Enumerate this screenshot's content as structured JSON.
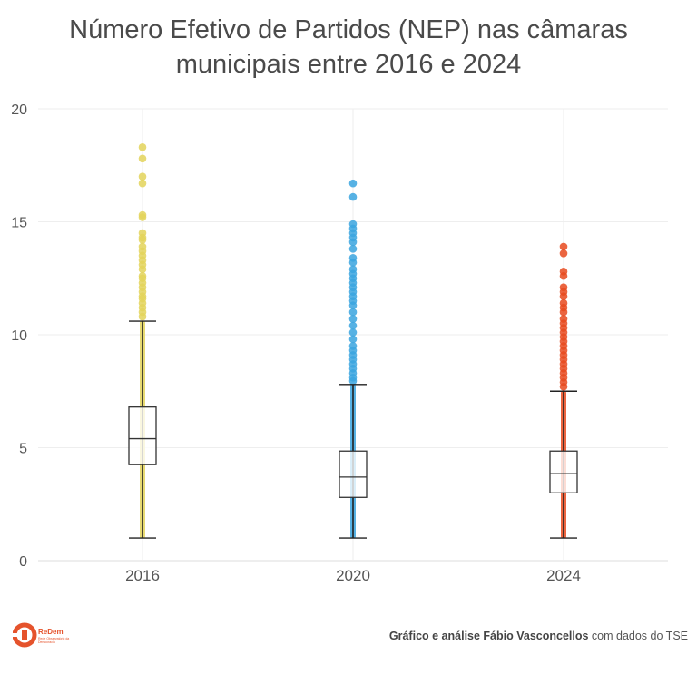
{
  "title_line1": "Número Efetivo de Partidos (NEP) nas câmaras",
  "title_line2": "municipais entre 2016 e 2024",
  "chart_data": {
    "type": "boxplot",
    "title": "Número Efetivo de Partidos (NEP) nas câmaras municipais entre 2016 e 2024",
    "xlabel": "",
    "ylabel": "",
    "ylim": [
      0,
      20
    ],
    "yticks": [
      0,
      5,
      10,
      15,
      20
    ],
    "grid": true,
    "categories": [
      "2016",
      "2020",
      "2024"
    ],
    "colors": {
      "2016": "#e3d35a",
      "2020": "#39a5df",
      "2024": "#e84a1e"
    },
    "boxes": [
      {
        "category": "2016",
        "min": 1.0,
        "q1": 4.25,
        "median": 5.4,
        "q3": 6.8,
        "max": 10.6,
        "outliers": [
          18.3,
          17.8,
          17.0,
          16.7,
          15.3,
          15.2,
          14.5,
          14.3,
          14.2,
          13.9,
          13.7,
          13.5,
          13.3,
          13.1,
          12.9,
          12.6,
          12.5,
          12.3,
          12.1,
          11.9,
          11.7,
          11.6,
          11.4,
          11.2,
          11.0,
          10.8
        ]
      },
      {
        "category": "2020",
        "min": 1.0,
        "q1": 2.8,
        "median": 3.7,
        "q3": 4.85,
        "max": 7.8,
        "outliers": [
          16.7,
          16.1,
          14.9,
          14.7,
          14.5,
          14.3,
          14.1,
          13.8,
          13.4,
          13.2,
          12.9,
          12.7,
          12.5,
          12.3,
          12.1,
          11.9,
          11.7,
          11.5,
          11.3,
          11.0,
          10.7,
          10.4,
          10.1,
          9.8,
          9.5,
          9.3,
          9.1,
          8.9,
          8.7,
          8.5,
          8.3,
          8.1,
          7.95
        ]
      },
      {
        "category": "2024",
        "min": 1.0,
        "q1": 3.0,
        "median": 3.85,
        "q3": 4.85,
        "max": 7.5,
        "outliers": [
          13.9,
          13.6,
          12.8,
          12.6,
          12.1,
          11.9,
          11.7,
          11.4,
          11.2,
          11.0,
          10.7,
          10.5,
          10.3,
          10.1,
          9.9,
          9.7,
          9.5,
          9.3,
          9.1,
          8.9,
          8.7,
          8.5,
          8.3,
          8.1,
          7.9,
          7.7
        ]
      }
    ]
  },
  "footer": {
    "logo_text": "ReDem",
    "logo_subtext": "Rede Observatório da Democracia",
    "credit_bold": "Gráfico e análise Fábio Vasconcellos",
    "credit_rest": " com dados do TSE"
  }
}
